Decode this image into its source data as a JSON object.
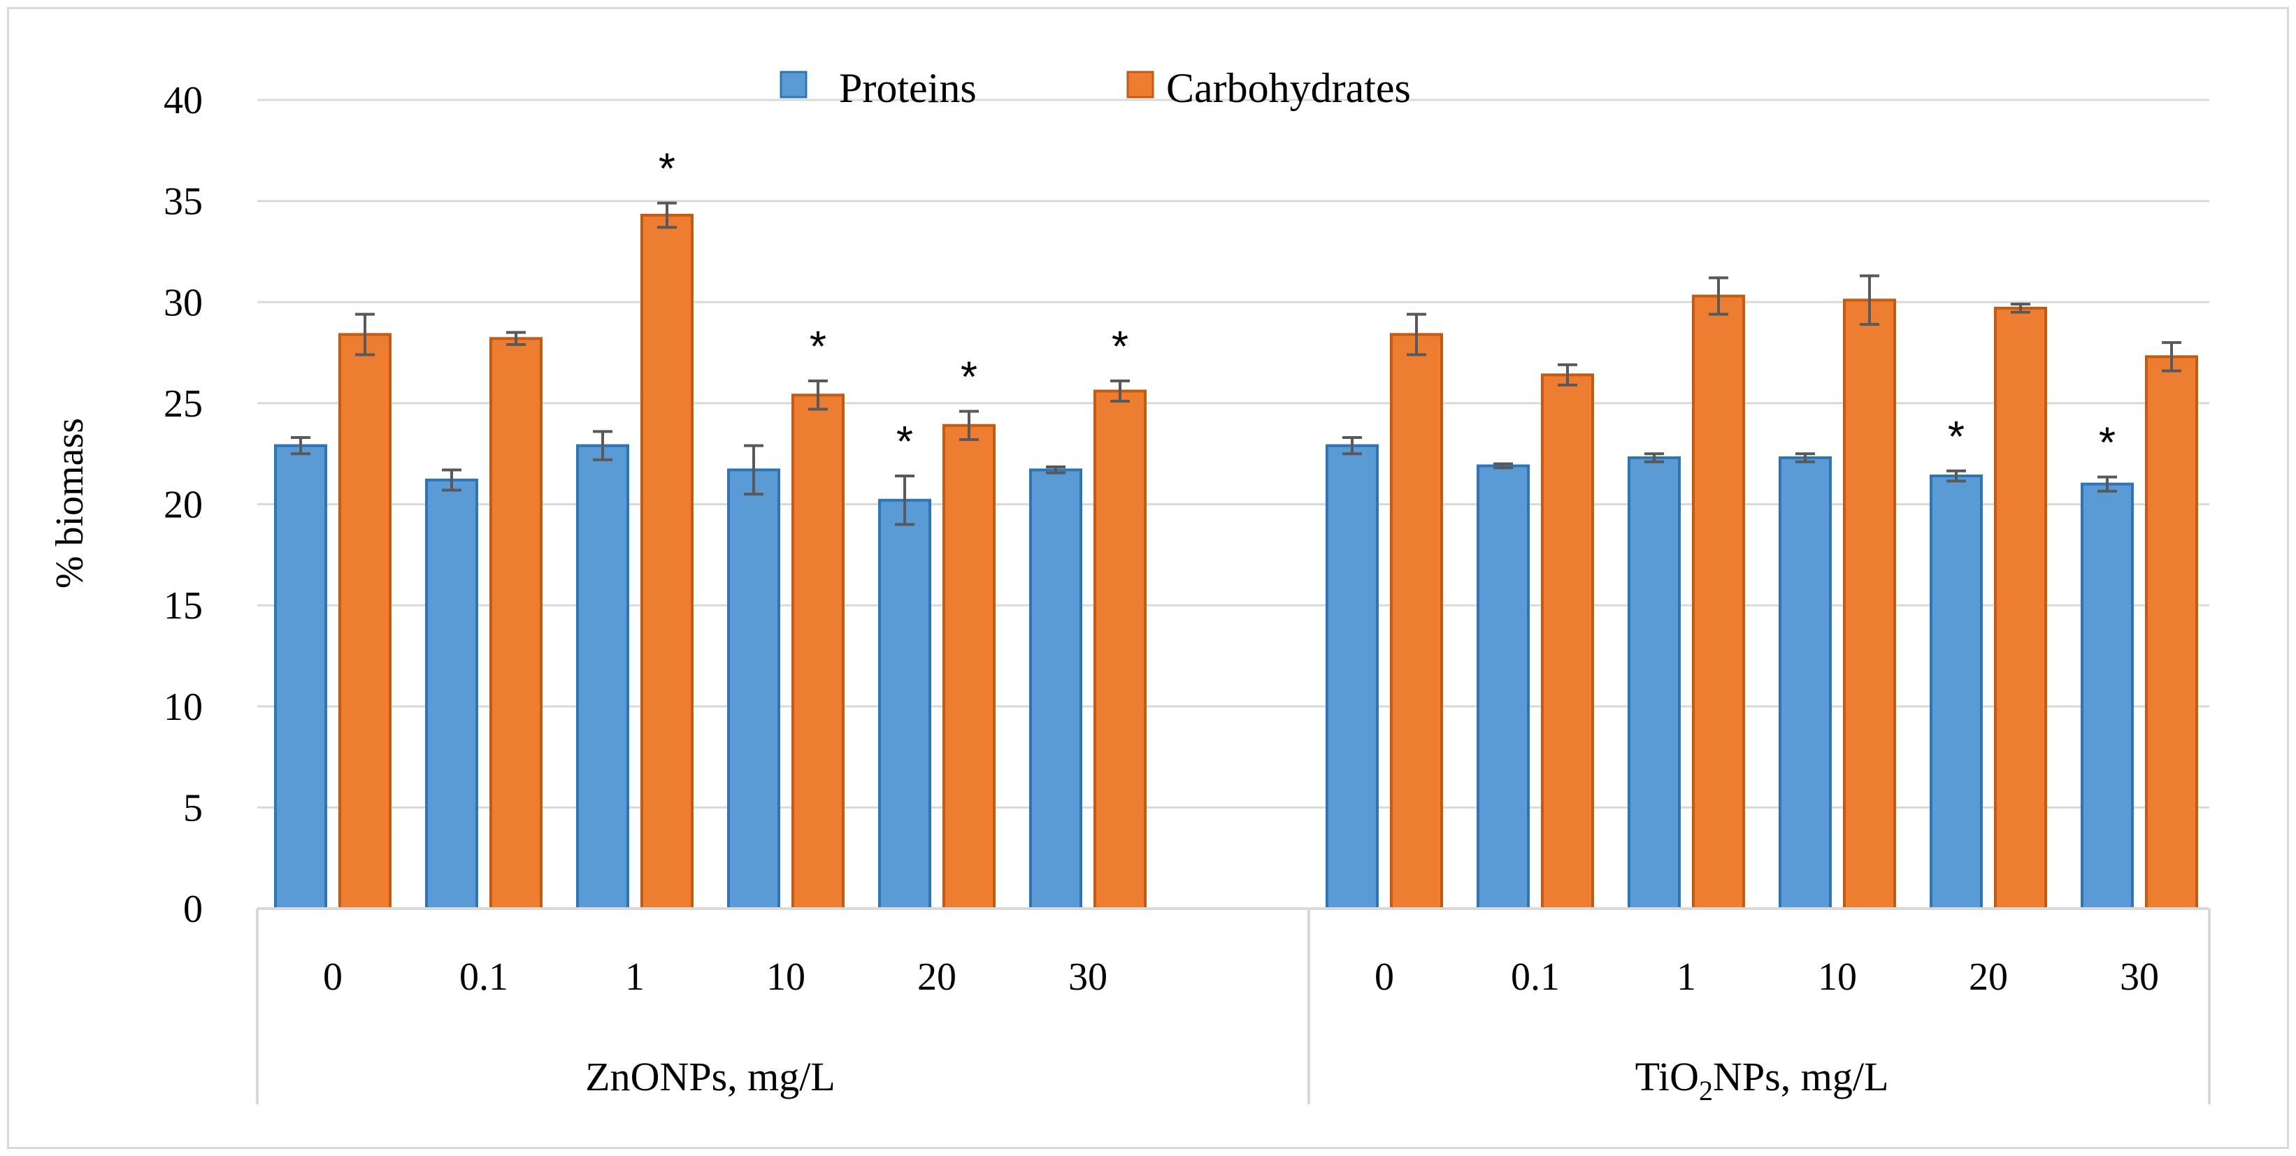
{
  "chart_data": {
    "type": "bar",
    "ylabel": "% biomass",
    "ylim": [
      0,
      40
    ],
    "yticks": [
      0,
      5,
      10,
      15,
      20,
      25,
      30,
      35,
      40
    ],
    "grid": true,
    "legend_position": "top-center",
    "colors": {
      "Proteins": "#5b9bd5",
      "Carbohydrates": "#ed7d31",
      "Proteins_edge": "#2e75b6",
      "Carbohydrates_edge": "#c55a11",
      "error_bar": "#595959",
      "grid": "#d9d9d9"
    },
    "groups": [
      {
        "label": "ZnONPs, mg/L",
        "label_main": "ZnONPs, mg/L",
        "categories": [
          "0",
          "0.1",
          "1",
          "10",
          "20",
          "30"
        ],
        "series": [
          {
            "name": "Proteins",
            "values": [
              22.9,
              21.2,
              22.9,
              21.7,
              20.2,
              21.7
            ],
            "errors": [
              0.4,
              0.5,
              0.7,
              1.2,
              1.2,
              0.15
            ],
            "significant": [
              false,
              false,
              false,
              false,
              true,
              false
            ]
          },
          {
            "name": "Carbohydrates",
            "values": [
              28.4,
              28.2,
              34.3,
              25.4,
              23.9,
              25.6
            ],
            "errors": [
              1.0,
              0.3,
              0.6,
              0.7,
              0.7,
              0.5
            ],
            "significant": [
              false,
              false,
              true,
              true,
              true,
              true
            ]
          }
        ]
      },
      {
        "label": "TiO2NPs, mg/L",
        "label_main": "TiO",
        "label_sub": "2",
        "label_rest": "NPs, mg/L",
        "categories": [
          "0",
          "0.1",
          "1",
          "10",
          "20",
          "30"
        ],
        "series": [
          {
            "name": "Proteins",
            "values": [
              22.9,
              21.9,
              22.3,
              22.3,
              21.4,
              21.0
            ],
            "errors": [
              0.4,
              0.1,
              0.2,
              0.2,
              0.25,
              0.35
            ],
            "significant": [
              false,
              false,
              false,
              false,
              true,
              true
            ]
          },
          {
            "name": "Carbohydrates",
            "values": [
              28.4,
              26.4,
              30.3,
              30.1,
              29.7,
              27.3
            ],
            "errors": [
              1.0,
              0.5,
              0.9,
              1.2,
              0.2,
              0.7
            ],
            "significant": [
              false,
              false,
              false,
              false,
              false,
              false
            ]
          }
        ]
      }
    ],
    "significance_marker": "*"
  }
}
